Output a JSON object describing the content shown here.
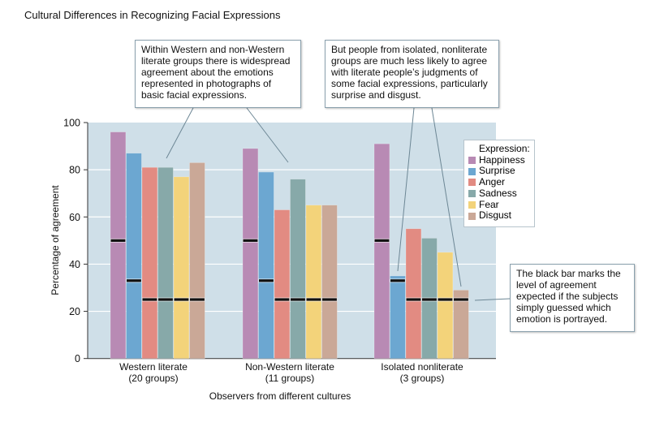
{
  "chart_data": {
    "type": "bar",
    "title": "Cultural Differences in Recognizing Facial Expressions",
    "xlabel": "Observers from different cultures",
    "ylabel": "Percentage of agreement",
    "ylim": [
      0,
      100
    ],
    "yticks": [
      "0",
      "20",
      "40",
      "60",
      "80",
      "100"
    ],
    "grid": true,
    "legend_position": "right",
    "legend_title": "Expression:",
    "categories": [
      {
        "line1": "Western literate",
        "line2": "(20 groups)"
      },
      {
        "line1": "Non-Western literate",
        "line2": "(11 groups)"
      },
      {
        "line1": "Isolated nonliterate",
        "line2": "(3 groups)"
      }
    ],
    "series": [
      {
        "name": "Happiness",
        "color": "#b88ab4",
        "values": [
          96,
          89,
          91
        ],
        "chance": [
          50,
          50,
          50
        ]
      },
      {
        "name": "Surprise",
        "color": "#6ca7d1",
        "values": [
          87,
          79,
          35
        ],
        "chance": [
          33,
          33,
          33
        ]
      },
      {
        "name": "Anger",
        "color": "#e28b82",
        "values": [
          81,
          63,
          55
        ],
        "chance": [
          25,
          25,
          25
        ]
      },
      {
        "name": "Sadness",
        "color": "#87a9a9",
        "values": [
          81,
          76,
          51
        ],
        "chance": [
          25,
          25,
          25
        ]
      },
      {
        "name": "Fear",
        "color": "#f3d37a",
        "values": [
          77,
          65,
          45
        ],
        "chance": [
          25,
          25,
          25
        ]
      },
      {
        "name": "Disgust",
        "color": "#caa897",
        "values": [
          83,
          65,
          29
        ],
        "chance": [
          25,
          25,
          25
        ]
      }
    ],
    "annotations": [
      "Within Western and non-Western literate groups there is widespread agreement about the emotions represented in photographs of basic facial expressions.",
      "But people from isolated, nonliterate groups are much less likely to agree with literate people’s judgments of some facial expressions, particularly surprise and disgust.",
      "The black bar marks the level of agreement expected if the subjects simply guessed which emotion is portrayed."
    ],
    "plot_background": "#cfdfe8"
  }
}
